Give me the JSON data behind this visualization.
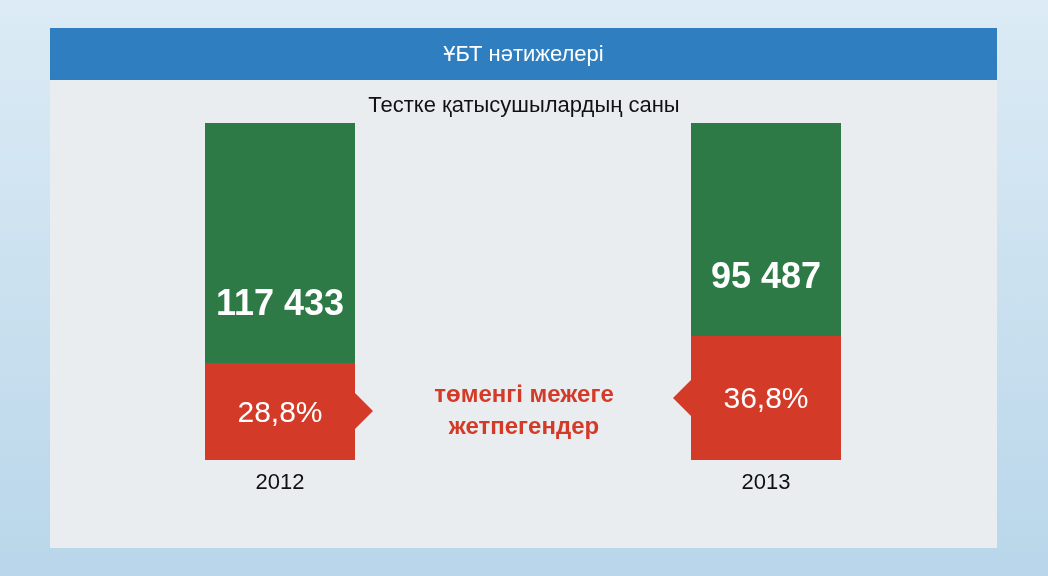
{
  "chart_data": {
    "type": "bar",
    "title": "ҰБТ нәтижелері",
    "subtitle": "Тестке қатысушылардың саны",
    "categories": [
      "2012",
      "2013"
    ],
    "stacked": true,
    "series": [
      {
        "color": "#d33b28",
        "values": [
          28.8,
          36.8
        ],
        "value_labels": [
          "28,8%",
          "36,8%"
        ]
      },
      {
        "color": "#2e7a46",
        "values": [
          71.2,
          63.2
        ]
      }
    ],
    "annotations": [
      "117 433",
      "95 487",
      "төменгі межеге жетпегендер"
    ]
  }
}
